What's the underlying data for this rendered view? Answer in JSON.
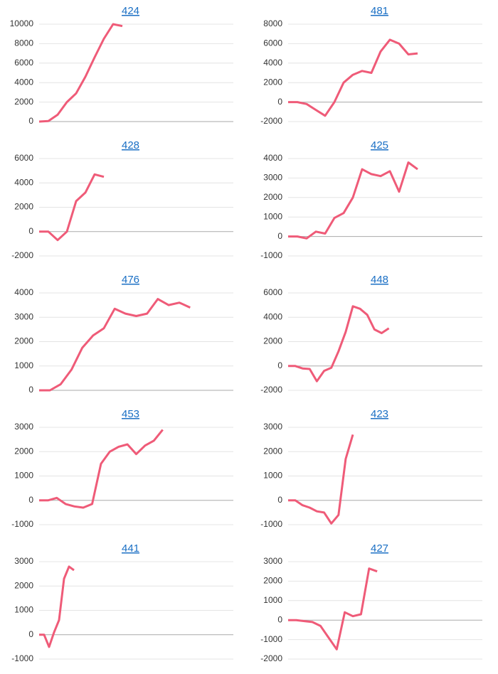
{
  "chart_data": [
    {
      "type": "line",
      "title": "424",
      "color": "#ef5b78",
      "xlim": [
        0,
        21
      ],
      "ylim": [
        0,
        10000
      ],
      "yticks": [
        0,
        2000,
        4000,
        6000,
        8000,
        10000
      ],
      "grid": true,
      "values": [
        0,
        50,
        700,
        2000,
        2900,
        4600,
        6600,
        8500,
        10000,
        9800
      ]
    },
    {
      "type": "line",
      "title": "481",
      "color": "#ef5b78",
      "xlim": [
        0,
        21
      ],
      "ylim": [
        -2000,
        8000
      ],
      "yticks": [
        -2000,
        0,
        2000,
        4000,
        6000,
        8000
      ],
      "grid": true,
      "values": [
        0,
        0,
        -200,
        -800,
        -1400,
        0,
        2000,
        2800,
        3200,
        3000,
        5200,
        6400,
        6000,
        4900,
        5000
      ]
    },
    {
      "type": "line",
      "title": "428",
      "color": "#ef5b78",
      "xlim": [
        0,
        21
      ],
      "ylim": [
        -2000,
        6000
      ],
      "yticks": [
        -2000,
        0,
        2000,
        4000,
        6000
      ],
      "grid": true,
      "values": [
        0,
        0,
        -700,
        0,
        2500,
        3200,
        4700,
        4500
      ]
    },
    {
      "type": "line",
      "title": "425",
      "color": "#ef5b78",
      "xlim": [
        0,
        21
      ],
      "ylim": [
        -1000,
        4000
      ],
      "yticks": [
        -1000,
        0,
        1000,
        2000,
        3000,
        4000
      ],
      "grid": true,
      "values": [
        0,
        0,
        -100,
        250,
        150,
        950,
        1200,
        2000,
        3450,
        3200,
        3100,
        3350,
        2300,
        3800,
        3450
      ]
    },
    {
      "type": "line",
      "title": "476",
      "color": "#ef5b78",
      "xlim": [
        0,
        18
      ],
      "ylim": [
        0,
        4000
      ],
      "yticks": [
        0,
        1000,
        2000,
        3000,
        4000
      ],
      "grid": true,
      "values": [
        0,
        0,
        250,
        850,
        1750,
        2250,
        2550,
        3350,
        3150,
        3050,
        3150,
        3750,
        3500,
        3600,
        3400
      ]
    },
    {
      "type": "line",
      "title": "448",
      "color": "#ef5b78",
      "xlim": [
        0,
        27
      ],
      "ylim": [
        -2000,
        6000
      ],
      "yticks": [
        -2000,
        0,
        2000,
        4000,
        6000
      ],
      "grid": true,
      "values": [
        0,
        0,
        -200,
        -250,
        -1250,
        -400,
        -150,
        1200,
        2800,
        4900,
        4700,
        4200,
        3000,
        2700,
        3100
      ]
    },
    {
      "type": "line",
      "title": "453",
      "color": "#ef5b78",
      "xlim": [
        0,
        22
      ],
      "ylim": [
        -1000,
        3000
      ],
      "yticks": [
        -1000,
        0,
        1000,
        2000,
        3000
      ],
      "grid": true,
      "values": [
        0,
        0,
        100,
        -150,
        -250,
        -300,
        -150,
        1500,
        2000,
        2200,
        2300,
        1900,
        2250,
        2450,
        2900
      ]
    },
    {
      "type": "line",
      "title": "423",
      "color": "#ef5b78",
      "xlim": [
        0,
        27
      ],
      "ylim": [
        -1000,
        3000
      ],
      "yticks": [
        -1000,
        0,
        1000,
        2000,
        3000
      ],
      "grid": true,
      "values": [
        0,
        0,
        -200,
        -300,
        -450,
        -500,
        -950,
        -600,
        1700,
        2700
      ]
    },
    {
      "type": "line",
      "title": "441",
      "color": "#ef5b78",
      "xlim": [
        0,
        39
      ],
      "ylim": [
        -1000,
        3000
      ],
      "yticks": [
        -1000,
        0,
        1000,
        2000,
        3000
      ],
      "grid": true,
      "values": [
        0,
        0,
        -500,
        100,
        600,
        2300,
        2800,
        2650
      ]
    },
    {
      "type": "line",
      "title": "427",
      "color": "#ef5b78",
      "xlim": [
        0,
        24
      ],
      "ylim": [
        -2000,
        3000
      ],
      "yticks": [
        -2000,
        -1000,
        0,
        1000,
        2000,
        3000
      ],
      "grid": true,
      "values": [
        0,
        0,
        -50,
        -100,
        -300,
        -900,
        -1500,
        400,
        200,
        300,
        2650,
        2500
      ]
    }
  ]
}
